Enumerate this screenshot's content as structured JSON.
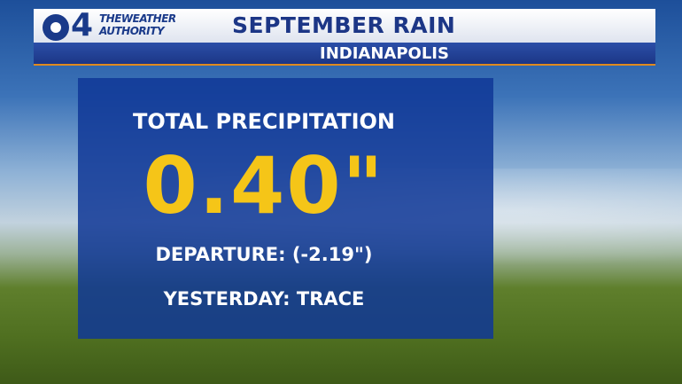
{
  "header": {
    "logo_number": "4",
    "brand_line1": "THEWEATHER",
    "brand_line2": "AUTHORITY",
    "title": "SEPTEMBER RAIN",
    "subtitle": "INDIANAPOLIS"
  },
  "card": {
    "label": "TOTAL PRECIPITATION",
    "value": "0.40\"",
    "departure": "DEPARTURE: (-2.19\")",
    "yesterday": "YESTERDAY: TRACE"
  }
}
